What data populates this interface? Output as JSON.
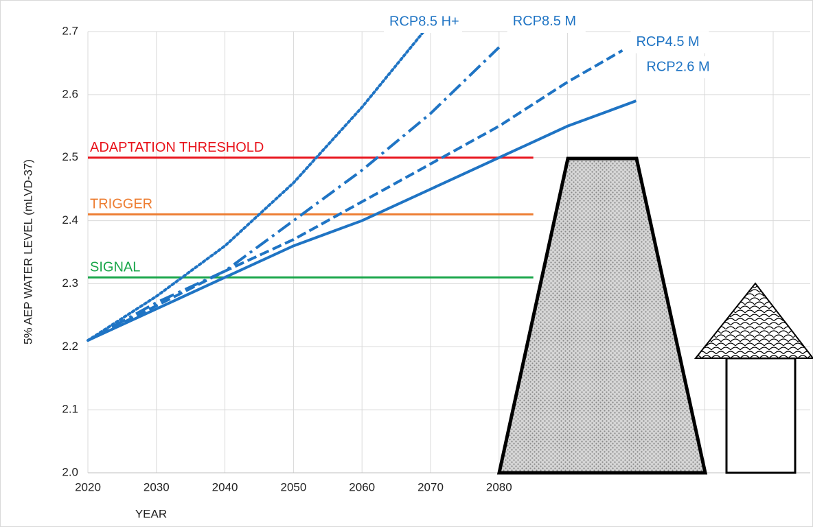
{
  "chart_data": {
    "type": "line",
    "x_label": "YEAR",
    "y_label": "5% AEP WATER LEVEL (mLVD-37)",
    "xlim": [
      2020,
      2125
    ],
    "ylim": [
      2.0,
      2.7
    ],
    "xticks": [
      2020,
      2030,
      2040,
      2050,
      2060,
      2070,
      2080,
      {
        "value": 2090,
        "label": null
      },
      {
        "value": 2100,
        "label": null
      },
      {
        "value": 2110,
        "label": null
      },
      {
        "value": 2120,
        "label": null
      }
    ],
    "yticks": [
      {
        "value": 2.0,
        "label": "2.0"
      },
      2.1,
      2.2,
      2.3,
      2.4,
      2.5,
      2.6,
      2.7
    ],
    "grid": true,
    "series": [
      {
        "name": "RCP2.6 M",
        "color": "#1f74c4",
        "style": "solid",
        "x": [
          2020,
          2030,
          2040,
          2050,
          2060,
          2070,
          2080,
          2090,
          2100
        ],
        "values": [
          2.21,
          2.26,
          2.31,
          2.36,
          2.4,
          2.45,
          2.5,
          2.55,
          2.59
        ]
      },
      {
        "name": "RCP4.5 M",
        "color": "#1f74c4",
        "style": "dashed",
        "x": [
          2020,
          2030,
          2040,
          2050,
          2060,
          2070,
          2080,
          2090,
          2098
        ],
        "values": [
          2.21,
          2.265,
          2.32,
          2.37,
          2.43,
          2.49,
          2.55,
          2.62,
          2.67
        ]
      },
      {
        "name": "RCP8.5 M",
        "color": "#1f74c4",
        "style": "dashdot",
        "x": [
          2020,
          2030,
          2040,
          2050,
          2060,
          2070,
          2080
        ],
        "values": [
          2.21,
          2.27,
          2.32,
          2.4,
          2.48,
          2.57,
          2.675
        ]
      },
      {
        "name": "RCP8.5 H+",
        "color": "#1f74c4",
        "style": "dotted",
        "x": [
          2020,
          2030,
          2040,
          2050,
          2060,
          2069
        ],
        "values": [
          2.21,
          2.28,
          2.36,
          2.46,
          2.58,
          2.7
        ]
      }
    ],
    "reference_lines": [
      {
        "name": "ADAPTATION THRESHOLD",
        "value": 2.5,
        "color": "#e8141c",
        "x_end": 2085
      },
      {
        "name": "TRIGGER",
        "value": 2.41,
        "color": "#ed7d31",
        "x_end": 2085
      },
      {
        "name": "SIGNAL",
        "value": 2.31,
        "color": "#1aa64a",
        "x_end": 2085
      }
    ]
  }
}
